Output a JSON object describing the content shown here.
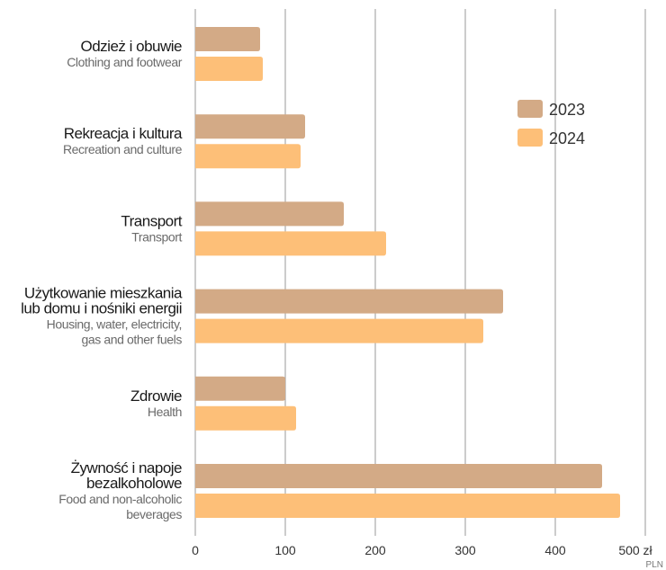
{
  "chart_data": {
    "type": "bar",
    "orientation": "horizontal",
    "categories": [
      {
        "pl": [
          "Odzież i obuwie"
        ],
        "en": [
          "Clothing and footwear"
        ]
      },
      {
        "pl": [
          "Rekreacja i kultura"
        ],
        "en": [
          "Recreation and culture"
        ]
      },
      {
        "pl": [
          "Transport"
        ],
        "en": [
          "Transport"
        ]
      },
      {
        "pl": [
          "Użytkowanie mieszkania",
          "lub domu i nośniki energii"
        ],
        "en": [
          "Housing, water, electricity,",
          "gas and other fuels"
        ]
      },
      {
        "pl": [
          "Zdrowie"
        ],
        "en": [
          "Health"
        ]
      },
      {
        "pl": [
          "Żywność i napoje",
          "bezalkoholowe"
        ],
        "en": [
          "Food and non-alcoholic",
          "beverages"
        ]
      }
    ],
    "series": [
      {
        "name": "2023",
        "color": "#d3aa86",
        "values": [
          72,
          122,
          165,
          342,
          100,
          452
        ]
      },
      {
        "name": "2024",
        "color": "#fdbf78",
        "values": [
          75,
          117,
          212,
          320,
          112,
          472
        ]
      }
    ],
    "xlim": [
      0,
      500
    ],
    "xticks": [
      0,
      100,
      200,
      300,
      400,
      500
    ],
    "tick_labels": [
      "0",
      "100",
      "200",
      "300",
      "400",
      "500 zł"
    ],
    "unit_secondary": "PLN",
    "grid": "vertical",
    "legend_position": "top-right",
    "gridline_color": "#9a9a9a"
  }
}
